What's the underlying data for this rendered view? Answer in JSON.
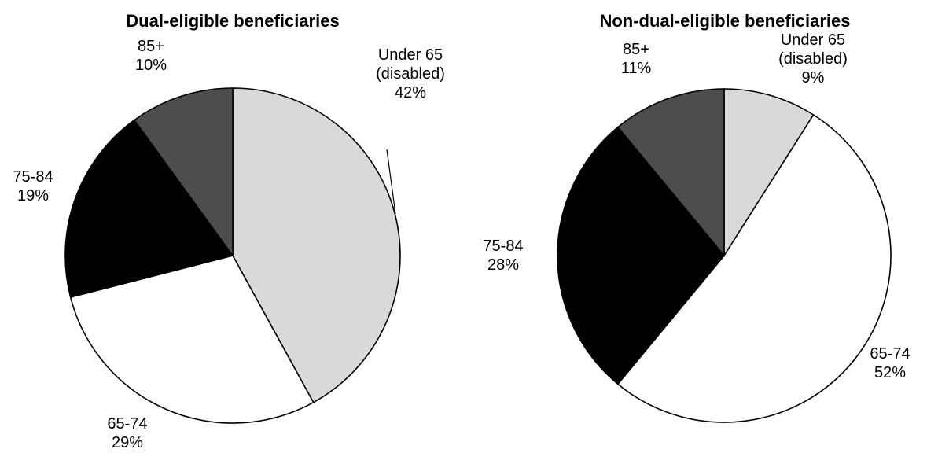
{
  "chart_data": [
    {
      "type": "pie",
      "title": "Dual-eligible beneficiaries",
      "slices": [
        {
          "label": "Under 65\n(disabled)",
          "value": 42,
          "value_label": "42%",
          "color": "#d9d9d9"
        },
        {
          "label": "65-74",
          "value": 29,
          "value_label": "29%",
          "color": "#ffffff"
        },
        {
          "label": "75-84",
          "value": 19,
          "value_label": "19%",
          "color": "#000000"
        },
        {
          "label": "85+",
          "value": 10,
          "value_label": "10%",
          "color": "#4d4d4d"
        }
      ]
    },
    {
      "type": "pie",
      "title": "Non-dual-eligible beneficiaries",
      "slices": [
        {
          "label": "Under 65\n(disabled)",
          "value": 9,
          "value_label": "9%",
          "color": "#d9d9d9"
        },
        {
          "label": "65-74",
          "value": 52,
          "value_label": "52%",
          "color": "#ffffff"
        },
        {
          "label": "75-84",
          "value": 28,
          "value_label": "28%",
          "color": "#000000"
        },
        {
          "label": "85+",
          "value": 11,
          "value_label": "11%",
          "color": "#4d4d4d"
        }
      ]
    }
  ]
}
